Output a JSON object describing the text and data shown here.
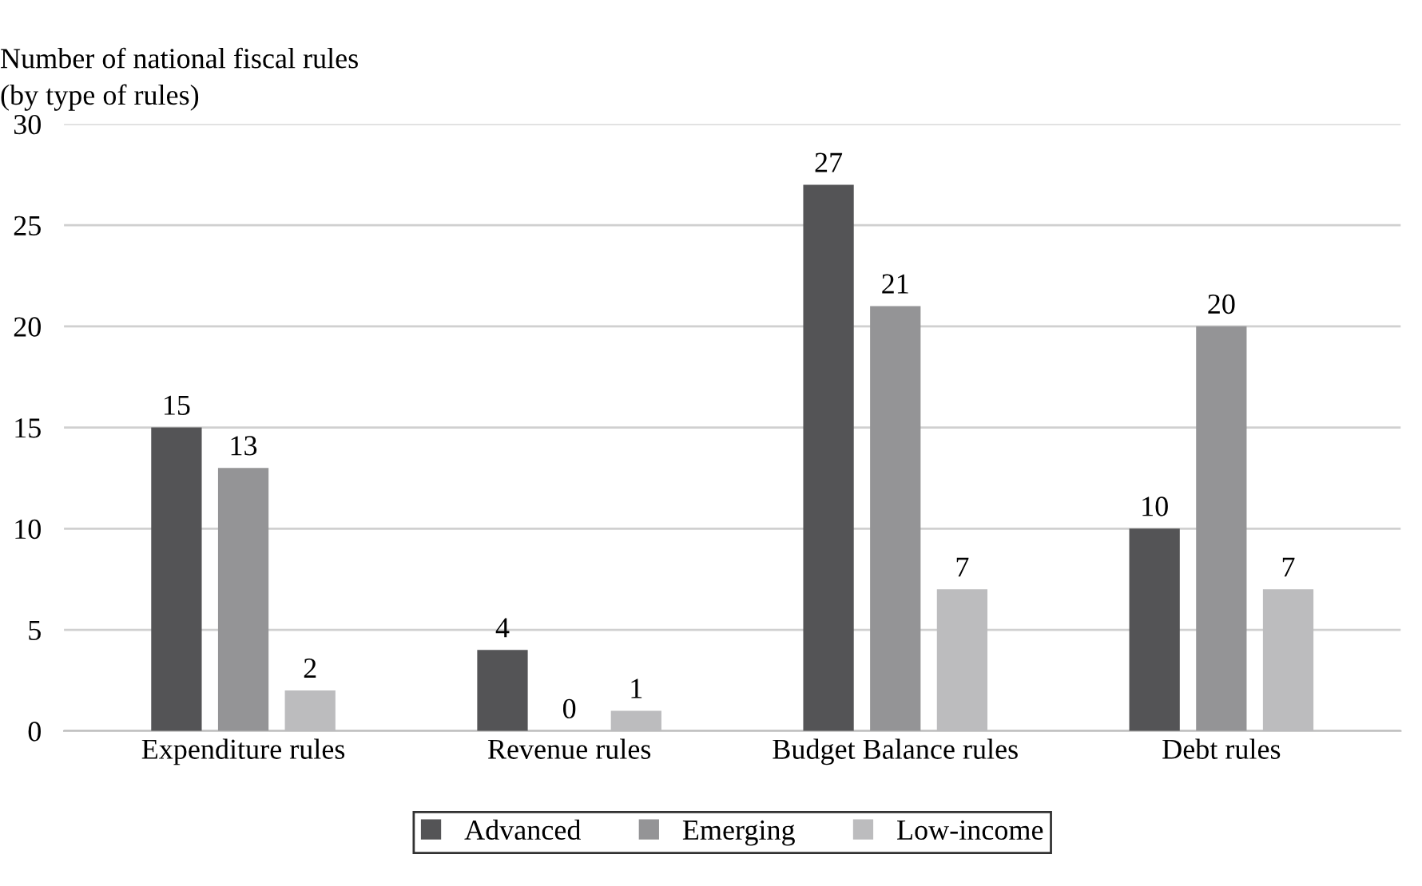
{
  "chart_data": {
    "type": "bar",
    "ylabel": "Number of national fiscal rules\n(by type of rules)",
    "categories": [
      "Expenditure rules",
      "Revenue rules",
      "Budget Balance rules",
      "Debt rules"
    ],
    "series": [
      {
        "name": "Advanced",
        "color": "#545456",
        "values": [
          15,
          4,
          27,
          10
        ]
      },
      {
        "name": "Emerging",
        "color": "#949496",
        "values": [
          13,
          0,
          21,
          20
        ]
      },
      {
        "name": "Low-income",
        "color": "#bcbcbe",
        "values": [
          2,
          1,
          7,
          7
        ]
      }
    ],
    "ylim": [
      0,
      30
    ],
    "yticks": [
      0,
      5,
      10,
      15,
      20,
      25,
      30
    ],
    "grid": "y",
    "legend": "bottom",
    "data_labels": true
  }
}
